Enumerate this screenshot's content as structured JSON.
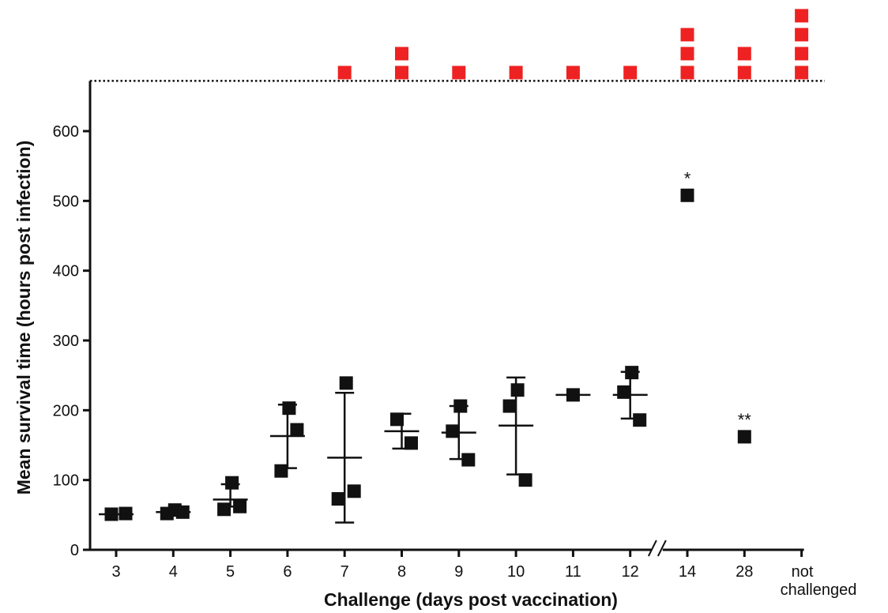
{
  "chart_data": {
    "type": "scatter",
    "xlabel": "Challenge (days post vaccination)",
    "ylabel": "Mean survival time (hours post infection)",
    "ylim": [
      0,
      672
    ],
    "yticks": [
      0,
      100,
      200,
      300,
      400,
      500,
      600
    ],
    "categories": [
      "3",
      "4",
      "5",
      "6",
      "7",
      "8",
      "9",
      "10",
      "11",
      "12",
      "14",
      "28",
      "not challenged"
    ],
    "axis_break_between": [
      "12",
      "14"
    ],
    "colors": {
      "died": "#111111",
      "survived": "#ee2222",
      "axis": "#111111"
    },
    "groups": [
      {
        "category": "3",
        "died": [
          51,
          52
        ],
        "survivors": 0,
        "mean": 51,
        "sd_low": null,
        "sd_high": null,
        "significance": ""
      },
      {
        "category": "4",
        "died": [
          57,
          52,
          54
        ],
        "survivors": 0,
        "mean": 54,
        "sd_low": null,
        "sd_high": null,
        "significance": ""
      },
      {
        "category": "5",
        "died": [
          96,
          58,
          62
        ],
        "survivors": 0,
        "mean": 72,
        "sd_low": 62,
        "sd_high": 94,
        "significance": ""
      },
      {
        "category": "6",
        "died": [
          203,
          113,
          172
        ],
        "survivors": 0,
        "mean": 163,
        "sd_low": 117,
        "sd_high": 208,
        "significance": ""
      },
      {
        "category": "7",
        "died": [
          239,
          73,
          84
        ],
        "survivors": 1,
        "mean": 132,
        "sd_low": 39,
        "sd_high": 225,
        "significance": ""
      },
      {
        "category": "8",
        "died": [
          187,
          153
        ],
        "survivors": 2,
        "mean": 170,
        "sd_low": 145,
        "sd_high": 195,
        "significance": ""
      },
      {
        "category": "9",
        "died": [
          206,
          170,
          129
        ],
        "survivors": 1,
        "mean": 168,
        "sd_low": 130,
        "sd_high": 206,
        "significance": ""
      },
      {
        "category": "10",
        "died": [
          229,
          206,
          100
        ],
        "survivors": 1,
        "mean": 178,
        "sd_low": 108,
        "sd_high": 247,
        "significance": ""
      },
      {
        "category": "11",
        "died": [
          222
        ],
        "survivors": 1,
        "mean": 222,
        "sd_low": null,
        "sd_high": null,
        "significance": ""
      },
      {
        "category": "12",
        "died": [
          254,
          226,
          186
        ],
        "survivors": 1,
        "mean": 222,
        "sd_low": 188,
        "sd_high": 255,
        "significance": ""
      },
      {
        "category": "14",
        "died": [
          508
        ],
        "survivors": 3,
        "mean": null,
        "sd_low": null,
        "sd_high": null,
        "significance": "*"
      },
      {
        "category": "28",
        "died": [
          162
        ],
        "survivors": 2,
        "mean": null,
        "sd_low": null,
        "sd_high": null,
        "significance": "**"
      },
      {
        "category": "not challenged",
        "died": [],
        "survivors": 4,
        "mean": null,
        "sd_low": null,
        "sd_high": null,
        "significance": ""
      }
    ]
  }
}
